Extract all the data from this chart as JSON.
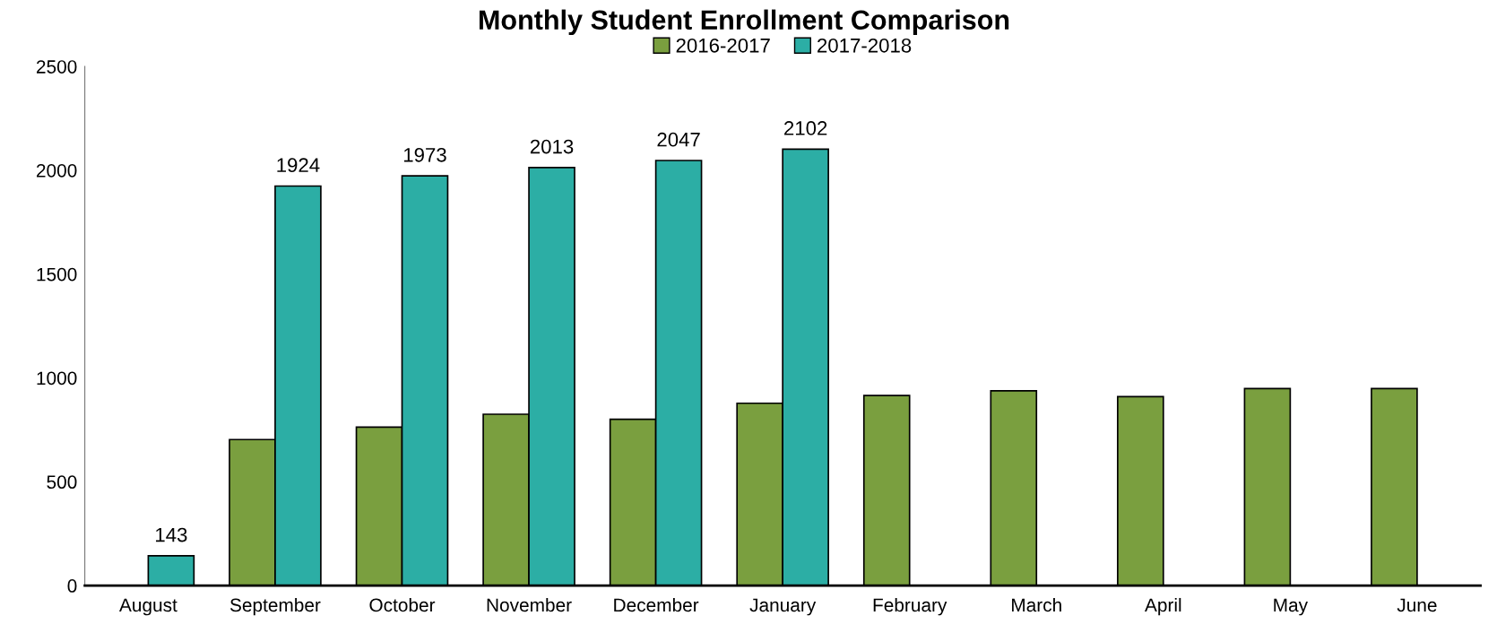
{
  "chart_data": {
    "type": "bar",
    "title": "Monthly Student Enrollment Comparison",
    "categories": [
      "August",
      "September",
      "October",
      "November",
      "December",
      "January",
      "February",
      "March",
      "April",
      "May",
      "June"
    ],
    "series": [
      {
        "name": "2016-2017",
        "color": "#7a9f3f",
        "values": [
          null,
          703,
          763,
          825,
          801,
          878,
          915,
          938,
          910,
          949,
          949
        ]
      },
      {
        "name": "2017-2018",
        "color": "#2caea5",
        "values": [
          143,
          1924,
          1973,
          2013,
          2047,
          2102,
          null,
          null,
          null,
          null,
          null
        ],
        "value_labels": [
          "143",
          "1924",
          "1973",
          "2013",
          "2047",
          "2102",
          null,
          null,
          null,
          null,
          null
        ]
      }
    ],
    "ylim": [
      0,
      2500
    ],
    "yticks": [
      0,
      500,
      1000,
      1500,
      2000,
      2500
    ],
    "grid": false,
    "legend": "top"
  }
}
